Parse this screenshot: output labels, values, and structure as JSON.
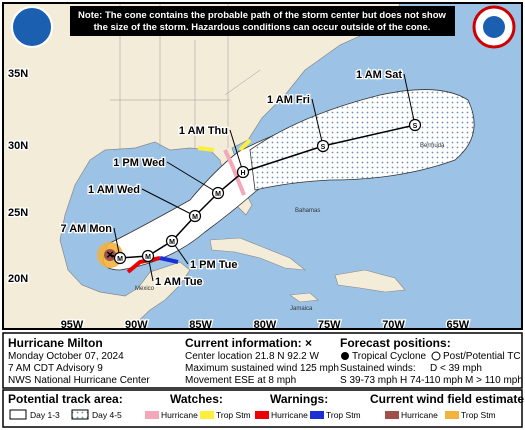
{
  "note": [
    "Note: The cone contains the probable path of the storm center but does not show",
    "the size of the storm. Hazardous conditions can occur outside of the cone."
  ],
  "map": {
    "lat_labels": [
      "35N",
      "30N",
      "25N",
      "20N"
    ],
    "lon_labels": [
      "95W",
      "90W",
      "85W",
      "80W",
      "75W",
      "70W",
      "65W"
    ],
    "places": [
      "Bermuda",
      "Bahamas",
      "Mexico",
      "Jamaica"
    ],
    "track": [
      {
        "label": "7 AM Mon",
        "letter": "M"
      },
      {
        "label": "1 AM Tue",
        "letter": "M"
      },
      {
        "label": "1 PM Tue",
        "letter": "M"
      },
      {
        "label": "1 AM Wed",
        "letter": "M"
      },
      {
        "label": "1 PM Wed",
        "letter": "M"
      },
      {
        "label": "1 AM Thu",
        "letter": "H"
      },
      {
        "label": "1 AM Fri",
        "letter": "S"
      },
      {
        "label": "1 AM Sat",
        "letter": "S"
      }
    ]
  },
  "info": {
    "storm": "Hurricane Milton",
    "date": "Monday October 07, 2024",
    "advisory": "7 AM CDT Advisory 9",
    "office": "NWS National Hurricane Center",
    "current_title": "Current information: ×",
    "current": [
      "Center location 21.8 N 92.2 W",
      "Maximum sustained wind 125 mph",
      "Movement ESE at 8 mph"
    ],
    "forecast_title": "Forecast positions:",
    "tropical": "Tropical Cyclone",
    "post": "Post/Potential TC",
    "winds_title": "Sustained winds:",
    "winds": [
      "D < 39 mph",
      "S 39-73 mph",
      "H 74-110 mph",
      "M > 110 mph"
    ]
  },
  "legend": {
    "track_title": "Potential track area:",
    "day13": "Day 1-3",
    "day45": "Day 4-5",
    "watches_title": "Watches:",
    "watch_hurricane": "Hurricane",
    "watch_ts": "Trop Stm",
    "warnings_title": "Warnings:",
    "warn_hurricane": "Hurricane",
    "warn_ts": "Trop Stm",
    "wind_title": "Current wind field estimate:",
    "wind_hurricane": "Hurricane",
    "wind_ts": "Trop Stm"
  }
}
